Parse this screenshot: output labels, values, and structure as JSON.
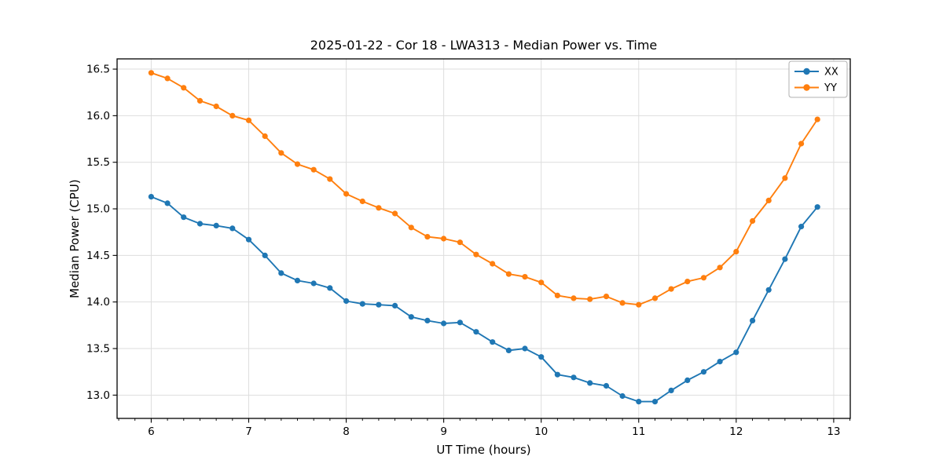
{
  "chart_data": {
    "type": "line",
    "title": "2025-01-22 - Cor 18 - LWA313 - Median Power vs. Time",
    "xlabel": "UT Time (hours)",
    "ylabel": "Median Power (CPU)",
    "xlim": [
      5.65,
      13.17
    ],
    "ylim": [
      12.75,
      16.61
    ],
    "grid": true,
    "legend_position": "upper right",
    "x_tick_labels": [
      "6",
      "7",
      "8",
      "9",
      "10",
      "11",
      "12",
      "13"
    ],
    "y_tick_labels": [
      "13.0",
      "13.5",
      "14.0",
      "14.5",
      "15.0",
      "15.5",
      "16.0",
      "16.5"
    ],
    "x_minor_step": 0.1666667,
    "x": [
      6.0,
      6.167,
      6.333,
      6.5,
      6.667,
      6.833,
      7.0,
      7.167,
      7.333,
      7.5,
      7.667,
      7.833,
      8.0,
      8.167,
      8.333,
      8.5,
      8.667,
      8.833,
      9.0,
      9.167,
      9.333,
      9.5,
      9.667,
      9.833,
      10.0,
      10.167,
      10.333,
      10.5,
      10.667,
      10.833,
      11.0,
      11.167,
      11.333,
      11.5,
      11.667,
      11.833,
      12.0,
      12.167,
      12.333,
      12.5,
      12.667,
      12.833
    ],
    "series": [
      {
        "name": "XX",
        "color": "#1f77b4",
        "values": [
          15.13,
          15.06,
          14.91,
          14.84,
          14.82,
          14.79,
          14.67,
          14.5,
          14.31,
          14.23,
          14.2,
          14.15,
          14.01,
          13.98,
          13.97,
          13.96,
          13.84,
          13.8,
          13.77,
          13.78,
          13.68,
          13.57,
          13.48,
          13.5,
          13.41,
          13.22,
          13.19,
          13.13,
          13.1,
          12.99,
          12.93,
          12.93,
          13.05,
          13.16,
          13.25,
          13.36,
          13.46,
          13.8,
          14.13,
          14.46,
          14.81,
          15.02
        ]
      },
      {
        "name": "YY",
        "color": "#ff7f0e",
        "values": [
          16.46,
          16.4,
          16.3,
          16.16,
          16.1,
          16.0,
          15.95,
          15.78,
          15.6,
          15.48,
          15.42,
          15.32,
          15.16,
          15.08,
          15.01,
          14.95,
          14.8,
          14.7,
          14.68,
          14.64,
          14.51,
          14.41,
          14.3,
          14.27,
          14.21,
          14.07,
          14.04,
          14.03,
          14.06,
          13.99,
          13.97,
          14.04,
          14.14,
          14.22,
          14.26,
          14.37,
          14.54,
          14.87,
          15.09,
          15.33,
          15.7,
          15.96
        ]
      }
    ],
    "style": {
      "grid_color": "#dedede",
      "spine_color": "#000000",
      "tick_color": "#000000",
      "background": "#ffffff",
      "legend_border": "#b0b0b0"
    }
  }
}
